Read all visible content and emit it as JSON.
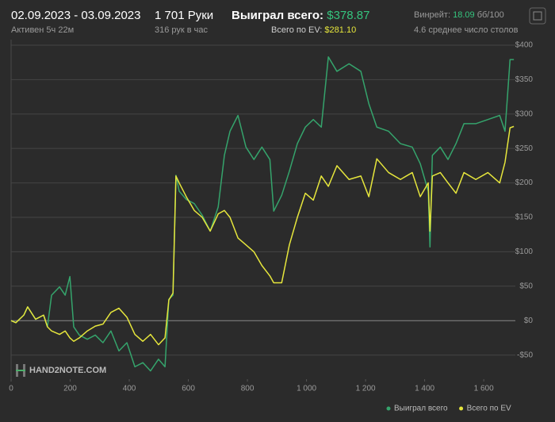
{
  "header": {
    "date_range": "02.09.2023 - 03.09.2023",
    "active": "Активен 5ч 22м",
    "hands": "1 701 Руки",
    "hands_per_hour": "316 рук в час",
    "won_label": "Выиграл всего:",
    "won_value": "$378.87",
    "ev_label": "Всего по EV:",
    "ev_value": "$281.10",
    "winrate_label": "Винрейт:",
    "winrate_value": "18.09",
    "winrate_unit": "бб/100",
    "tables": "4.6 среднее число столов"
  },
  "watermark": "HAND2NOTE.COM",
  "chart_data": {
    "type": "line",
    "x": [
      0,
      16,
      43,
      56,
      83,
      110,
      123,
      137,
      164,
      183,
      199,
      212,
      231,
      258,
      285,
      311,
      338,
      365,
      392,
      419,
      446,
      472,
      499,
      521,
      534,
      548,
      558,
      569,
      593,
      620,
      647,
      674,
      701,
      722,
      741,
      768,
      795,
      822,
      849,
      876,
      889,
      916,
      942,
      969,
      996,
      1023,
      1050,
      1074,
      1103,
      1144,
      1184,
      1211,
      1238,
      1278,
      1318,
      1358,
      1385,
      1412,
      1418,
      1426,
      1453,
      1479,
      1506,
      1533,
      1573,
      1614,
      1654,
      1672,
      1689,
      1702
    ],
    "series": [
      {
        "name": "Выиграл всего",
        "color": "#35a46c",
        "values": [
          0,
          -3,
          8,
          20,
          2,
          8,
          -9,
          37,
          49,
          37,
          64,
          -9,
          -21,
          -27,
          -21,
          -32,
          -15,
          -44,
          -32,
          -67,
          -61,
          -73,
          -56,
          -67,
          31,
          37,
          211,
          188,
          176,
          170,
          153,
          130,
          165,
          240,
          275,
          298,
          252,
          234,
          252,
          234,
          159,
          182,
          217,
          257,
          281,
          292,
          281,
          383,
          362,
          373,
          362,
          315,
          281,
          275,
          257,
          252,
          228,
          188,
          107,
          240,
          252,
          234,
          257,
          286,
          286,
          292,
          298,
          275,
          379,
          379
        ]
      },
      {
        "name": "Всего по EV",
        "color": "#e6e63c",
        "values": [
          0,
          -3,
          8,
          20,
          2,
          8,
          -9,
          -15,
          -20,
          -15,
          -25,
          -30,
          -25,
          -15,
          -8,
          -5,
          12,
          18,
          5,
          -20,
          -30,
          -20,
          -35,
          -25,
          30,
          40,
          210,
          200,
          180,
          160,
          150,
          130,
          155,
          160,
          150,
          120,
          110,
          100,
          80,
          65,
          55,
          55,
          110,
          150,
          185,
          175,
          210,
          195,
          225,
          205,
          210,
          180,
          235,
          215,
          205,
          215,
          180,
          200,
          130,
          210,
          215,
          200,
          185,
          215,
          205,
          215,
          200,
          230,
          280,
          282
        ]
      }
    ],
    "xlim": [
      0,
      1707
    ],
    "xticks": [
      0,
      200,
      400,
      600,
      800,
      {
        "value": 1000,
        "label": "1 000"
      },
      {
        "value": 1200,
        "label": "1 200"
      },
      {
        "value": 1400,
        "label": "1 400"
      },
      {
        "value": 1600,
        "label": "1 600"
      }
    ],
    "ylim": [
      -85,
      408
    ],
    "yticks": [
      {
        "value": -50,
        "label": "-$50"
      },
      {
        "value": 0,
        "label": "$0"
      },
      {
        "value": 50,
        "label": "$50"
      },
      {
        "value": 100,
        "label": "$100"
      },
      {
        "value": 150,
        "label": "$150"
      },
      {
        "value": 200,
        "label": "$200"
      },
      {
        "value": 250,
        "label": "$250"
      },
      {
        "value": 300,
        "label": "$300"
      },
      {
        "value": 350,
        "label": "$350"
      },
      {
        "value": 400,
        "label": "$400"
      }
    ],
    "grid": true
  }
}
